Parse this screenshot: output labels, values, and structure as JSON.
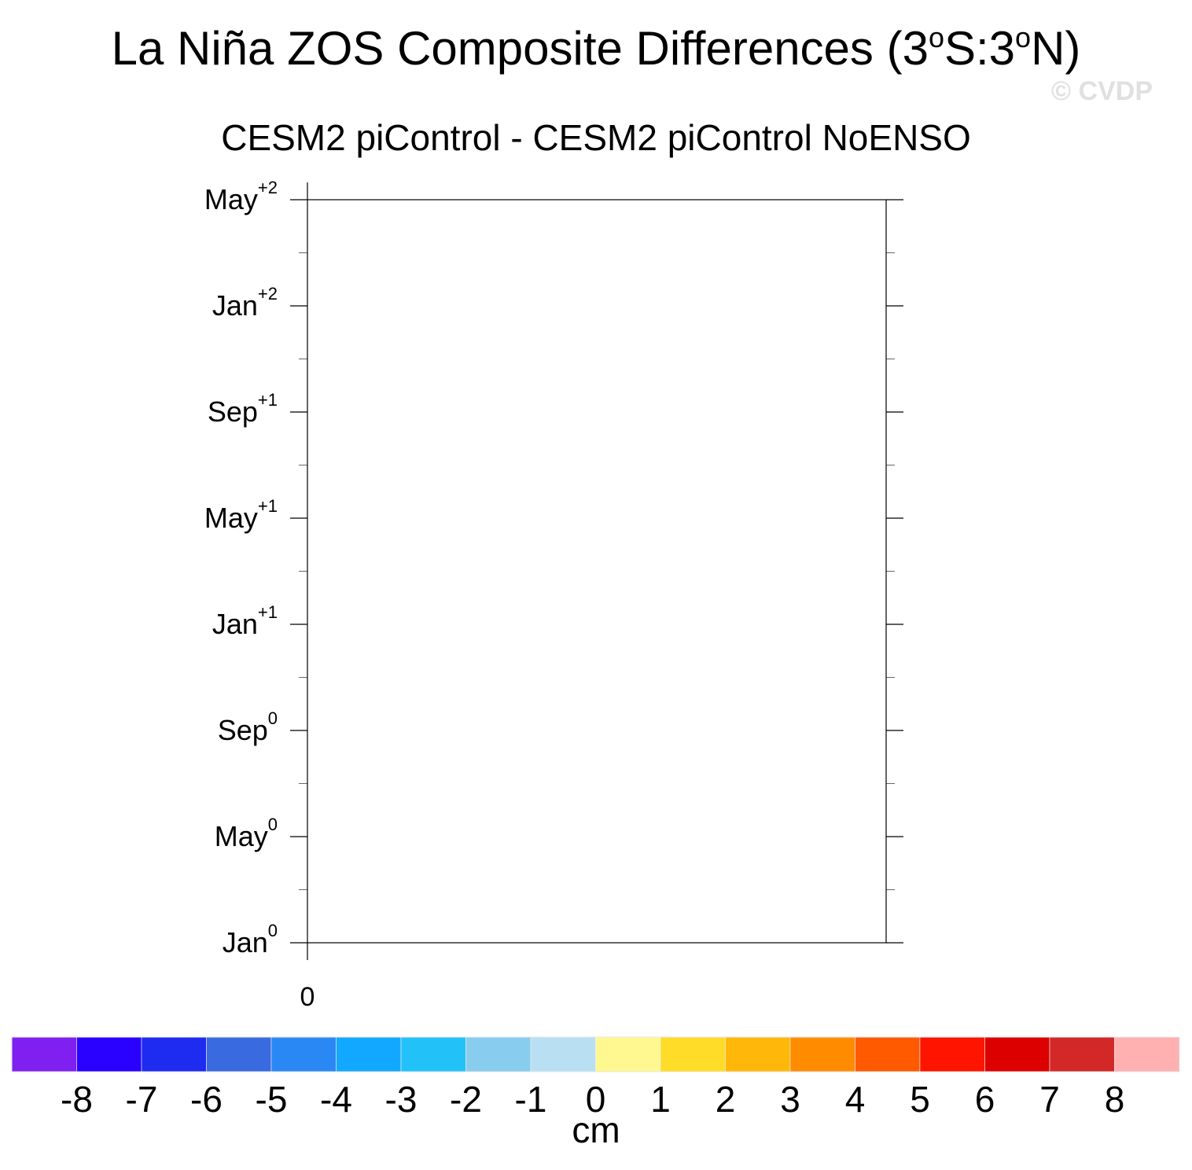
{
  "title": {
    "main": "La Niña ZOS Composite Differences (3",
    "deg1": "o",
    "mid": "S:3",
    "deg2": "o",
    "end": "N)"
  },
  "watermark": "© CVDP",
  "subtitle": "CESM2 piControl - CESM2 piControl NoENSO",
  "chart_data": {
    "type": "heatmap",
    "x": [],
    "y_ticks": [
      {
        "base": "Jan",
        "sup": "0"
      },
      {
        "base": "May",
        "sup": "0"
      },
      {
        "base": "Sep",
        "sup": "0"
      },
      {
        "base": "Jan",
        "sup": "+1"
      },
      {
        "base": "May",
        "sup": "+1"
      },
      {
        "base": "Sep",
        "sup": "+1"
      },
      {
        "base": "Jan",
        "sup": "+2"
      },
      {
        "base": "May",
        "sup": "+2"
      }
    ],
    "x_ticks": [
      "0"
    ],
    "grid": false,
    "colorbar": {
      "labels": [
        "-8",
        "-7",
        "-6",
        "-5",
        "-4",
        "-3",
        "-2",
        "-1",
        "0",
        "1",
        "2",
        "3",
        "4",
        "5",
        "6",
        "7",
        "8"
      ],
      "colors": [
        "#8020f0",
        "#2a00ff",
        "#1e2cf0",
        "#3a6ae0",
        "#2a88f5",
        "#12a8ff",
        "#22c2f8",
        "#88ccee",
        "#b8e0f2",
        "#fff890",
        "#ffdc28",
        "#ffb80a",
        "#ff8c00",
        "#ff5a00",
        "#ff1400",
        "#dc0000",
        "#d22828",
        "#ffb0b0"
      ],
      "units": "cm"
    }
  }
}
